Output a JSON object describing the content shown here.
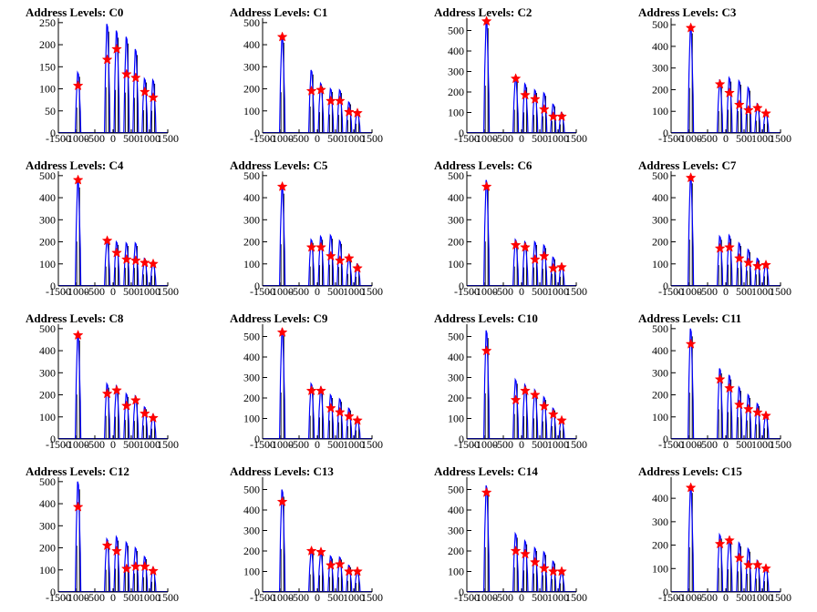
{
  "chart_data": [
    {
      "type": "bar",
      "title": "Address Levels: C0",
      "xlim": [
        -1500,
        1500
      ],
      "ylim": [
        0,
        260
      ],
      "yticks": [
        0,
        50,
        100,
        150,
        200,
        250
      ],
      "peaks": [
        {
          "x": -960,
          "y": 137
        },
        {
          "x": -160,
          "y": 247
        },
        {
          "x": 100,
          "y": 232
        },
        {
          "x": 370,
          "y": 218
        },
        {
          "x": 620,
          "y": 190
        },
        {
          "x": 870,
          "y": 123
        },
        {
          "x": 1100,
          "y": 120
        }
      ],
      "markers": [
        {
          "x": -960,
          "y": 107
        },
        {
          "x": -160,
          "y": 166
        },
        {
          "x": 100,
          "y": 190
        },
        {
          "x": 370,
          "y": 133
        },
        {
          "x": 620,
          "y": 125
        },
        {
          "x": 870,
          "y": 93
        },
        {
          "x": 1100,
          "y": 80
        }
      ]
    },
    {
      "type": "bar",
      "title": "Address Levels: C1",
      "xlim": [
        -1500,
        1500
      ],
      "ylim": [
        0,
        520
      ],
      "yticks": [
        0,
        100,
        200,
        300,
        400,
        500
      ],
      "peaks": [
        {
          "x": -960,
          "y": 440
        },
        {
          "x": -160,
          "y": 285
        },
        {
          "x": 100,
          "y": 225
        },
        {
          "x": 370,
          "y": 200
        },
        {
          "x": 620,
          "y": 195
        },
        {
          "x": 870,
          "y": 140
        },
        {
          "x": 1100,
          "y": 100
        }
      ],
      "markers": [
        {
          "x": -960,
          "y": 435
        },
        {
          "x": -160,
          "y": 190
        },
        {
          "x": 100,
          "y": 195
        },
        {
          "x": 370,
          "y": 145
        },
        {
          "x": 620,
          "y": 145
        },
        {
          "x": 870,
          "y": 95
        },
        {
          "x": 1100,
          "y": 90
        }
      ]
    },
    {
      "type": "bar",
      "title": "Address Levels: C2",
      "xlim": [
        -1500,
        1500
      ],
      "ylim": [
        0,
        560
      ],
      "yticks": [
        0,
        100,
        200,
        300,
        400,
        500
      ],
      "peaks": [
        {
          "x": -960,
          "y": 550
        },
        {
          "x": -160,
          "y": 270
        },
        {
          "x": 100,
          "y": 240
        },
        {
          "x": 370,
          "y": 210
        },
        {
          "x": 620,
          "y": 195
        },
        {
          "x": 870,
          "y": 140
        },
        {
          "x": 1100,
          "y": 100
        }
      ],
      "markers": [
        {
          "x": -960,
          "y": 545
        },
        {
          "x": -160,
          "y": 265
        },
        {
          "x": 100,
          "y": 185
        },
        {
          "x": 370,
          "y": 165
        },
        {
          "x": 620,
          "y": 115
        },
        {
          "x": 870,
          "y": 80
        },
        {
          "x": 1100,
          "y": 80
        }
      ]
    },
    {
      "type": "bar",
      "title": "Address Levels: C3",
      "xlim": [
        -1500,
        1500
      ],
      "ylim": [
        0,
        530
      ],
      "yticks": [
        0,
        100,
        200,
        300,
        400,
        500
      ],
      "peaks": [
        {
          "x": -960,
          "y": 495
        },
        {
          "x": -160,
          "y": 240
        },
        {
          "x": 100,
          "y": 255
        },
        {
          "x": 370,
          "y": 240
        },
        {
          "x": 620,
          "y": 210
        },
        {
          "x": 870,
          "y": 135
        },
        {
          "x": 1100,
          "y": 100
        }
      ],
      "markers": [
        {
          "x": -960,
          "y": 485
        },
        {
          "x": -160,
          "y": 225
        },
        {
          "x": 100,
          "y": 185
        },
        {
          "x": 370,
          "y": 130
        },
        {
          "x": 620,
          "y": 105
        },
        {
          "x": 870,
          "y": 115
        },
        {
          "x": 1100,
          "y": 90
        }
      ]
    },
    {
      "type": "bar",
      "title": "Address Levels: C4",
      "xlim": [
        -1500,
        1500
      ],
      "ylim": [
        0,
        520
      ],
      "yticks": [
        0,
        100,
        200,
        300,
        400,
        500
      ],
      "peaks": [
        {
          "x": -960,
          "y": 480
        },
        {
          "x": -160,
          "y": 210
        },
        {
          "x": 100,
          "y": 200
        },
        {
          "x": 370,
          "y": 195
        },
        {
          "x": 620,
          "y": 195
        },
        {
          "x": 870,
          "y": 125
        },
        {
          "x": 1100,
          "y": 110
        }
      ],
      "markers": [
        {
          "x": -960,
          "y": 480
        },
        {
          "x": -160,
          "y": 205
        },
        {
          "x": 100,
          "y": 150
        },
        {
          "x": 370,
          "y": 120
        },
        {
          "x": 620,
          "y": 115
        },
        {
          "x": 870,
          "y": 105
        },
        {
          "x": 1100,
          "y": 100
        }
      ]
    },
    {
      "type": "bar",
      "title": "Address Levels: C5",
      "xlim": [
        -1500,
        1500
      ],
      "ylim": [
        0,
        520
      ],
      "yticks": [
        0,
        100,
        200,
        300,
        400,
        500
      ],
      "peaks": [
        {
          "x": -960,
          "y": 450
        },
        {
          "x": -160,
          "y": 210
        },
        {
          "x": 100,
          "y": 225
        },
        {
          "x": 370,
          "y": 230
        },
        {
          "x": 620,
          "y": 205
        },
        {
          "x": 870,
          "y": 130
        },
        {
          "x": 1100,
          "y": 100
        }
      ],
      "markers": [
        {
          "x": -960,
          "y": 450
        },
        {
          "x": -160,
          "y": 175
        },
        {
          "x": 100,
          "y": 175
        },
        {
          "x": 370,
          "y": 135
        },
        {
          "x": 620,
          "y": 115
        },
        {
          "x": 870,
          "y": 125
        },
        {
          "x": 1100,
          "y": 80
        }
      ]
    },
    {
      "type": "bar",
      "title": "Address Levels: C6",
      "xlim": [
        -1500,
        1500
      ],
      "ylim": [
        0,
        520
      ],
      "yticks": [
        0,
        100,
        200,
        300,
        400,
        500
      ],
      "peaks": [
        {
          "x": -960,
          "y": 480
        },
        {
          "x": -160,
          "y": 210
        },
        {
          "x": 100,
          "y": 200
        },
        {
          "x": 370,
          "y": 200
        },
        {
          "x": 620,
          "y": 185
        },
        {
          "x": 870,
          "y": 130
        },
        {
          "x": 1100,
          "y": 100
        }
      ],
      "markers": [
        {
          "x": -960,
          "y": 450
        },
        {
          "x": -160,
          "y": 185
        },
        {
          "x": 100,
          "y": 175
        },
        {
          "x": 370,
          "y": 120
        },
        {
          "x": 620,
          "y": 135
        },
        {
          "x": 870,
          "y": 80
        },
        {
          "x": 1100,
          "y": 85
        }
      ]
    },
    {
      "type": "bar",
      "title": "Address Levels: C7",
      "xlim": [
        -1500,
        1500
      ],
      "ylim": [
        0,
        520
      ],
      "yticks": [
        0,
        100,
        200,
        300,
        400,
        500
      ],
      "peaks": [
        {
          "x": -960,
          "y": 500
        },
        {
          "x": -160,
          "y": 225
        },
        {
          "x": 100,
          "y": 230
        },
        {
          "x": 370,
          "y": 195
        },
        {
          "x": 620,
          "y": 165
        },
        {
          "x": 870,
          "y": 125
        },
        {
          "x": 1100,
          "y": 105
        }
      ],
      "markers": [
        {
          "x": -960,
          "y": 490
        },
        {
          "x": -160,
          "y": 170
        },
        {
          "x": 100,
          "y": 175
        },
        {
          "x": 370,
          "y": 125
        },
        {
          "x": 620,
          "y": 105
        },
        {
          "x": 870,
          "y": 90
        },
        {
          "x": 1100,
          "y": 95
        }
      ]
    },
    {
      "type": "bar",
      "title": "Address Levels: C8",
      "xlim": [
        -1500,
        1500
      ],
      "ylim": [
        0,
        520
      ],
      "yticks": [
        0,
        100,
        200,
        300,
        400,
        500
      ],
      "peaks": [
        {
          "x": -960,
          "y": 480
        },
        {
          "x": -160,
          "y": 250
        },
        {
          "x": 100,
          "y": 240
        },
        {
          "x": 370,
          "y": 205
        },
        {
          "x": 620,
          "y": 195
        },
        {
          "x": 870,
          "y": 145
        },
        {
          "x": 1100,
          "y": 110
        }
      ],
      "markers": [
        {
          "x": -960,
          "y": 470
        },
        {
          "x": -160,
          "y": 205
        },
        {
          "x": 100,
          "y": 220
        },
        {
          "x": 370,
          "y": 150
        },
        {
          "x": 620,
          "y": 175
        },
        {
          "x": 870,
          "y": 115
        },
        {
          "x": 1100,
          "y": 95
        }
      ]
    },
    {
      "type": "bar",
      "title": "Address Levels: C9",
      "xlim": [
        -1500,
        1500
      ],
      "ylim": [
        0,
        560
      ],
      "yticks": [
        0,
        100,
        200,
        300,
        400,
        500
      ],
      "peaks": [
        {
          "x": -960,
          "y": 540
        },
        {
          "x": -160,
          "y": 270
        },
        {
          "x": 100,
          "y": 250
        },
        {
          "x": 370,
          "y": 215
        },
        {
          "x": 620,
          "y": 195
        },
        {
          "x": 870,
          "y": 150
        },
        {
          "x": 1100,
          "y": 100
        }
      ],
      "markers": [
        {
          "x": -960,
          "y": 520
        },
        {
          "x": -160,
          "y": 235
        },
        {
          "x": 100,
          "y": 235
        },
        {
          "x": 370,
          "y": 150
        },
        {
          "x": 620,
          "y": 130
        },
        {
          "x": 870,
          "y": 110
        },
        {
          "x": 1100,
          "y": 90
        }
      ]
    },
    {
      "type": "bar",
      "title": "Address Levels: C10",
      "xlim": [
        -1500,
        1500
      ],
      "ylim": [
        0,
        560
      ],
      "yticks": [
        0,
        100,
        200,
        300,
        400,
        500
      ],
      "peaks": [
        {
          "x": -960,
          "y": 530
        },
        {
          "x": -160,
          "y": 290
        },
        {
          "x": 100,
          "y": 265
        },
        {
          "x": 370,
          "y": 240
        },
        {
          "x": 620,
          "y": 205
        },
        {
          "x": 870,
          "y": 150
        },
        {
          "x": 1100,
          "y": 100
        }
      ],
      "markers": [
        {
          "x": -960,
          "y": 430
        },
        {
          "x": -160,
          "y": 190
        },
        {
          "x": 100,
          "y": 235
        },
        {
          "x": 370,
          "y": 215
        },
        {
          "x": 620,
          "y": 160
        },
        {
          "x": 870,
          "y": 120
        },
        {
          "x": 1100,
          "y": 90
        }
      ]
    },
    {
      "type": "bar",
      "title": "Address Levels: C11",
      "xlim": [
        -1500,
        1500
      ],
      "ylim": [
        0,
        520
      ],
      "yticks": [
        0,
        100,
        200,
        300,
        400,
        500
      ],
      "peaks": [
        {
          "x": -960,
          "y": 500
        },
        {
          "x": -160,
          "y": 320
        },
        {
          "x": 100,
          "y": 290
        },
        {
          "x": 370,
          "y": 235
        },
        {
          "x": 620,
          "y": 200
        },
        {
          "x": 870,
          "y": 160
        },
        {
          "x": 1100,
          "y": 115
        }
      ],
      "markers": [
        {
          "x": -960,
          "y": 430
        },
        {
          "x": -160,
          "y": 270
        },
        {
          "x": 100,
          "y": 230
        },
        {
          "x": 370,
          "y": 155
        },
        {
          "x": 620,
          "y": 135
        },
        {
          "x": 870,
          "y": 120
        },
        {
          "x": 1100,
          "y": 105
        }
      ]
    },
    {
      "type": "bar",
      "title": "Address Levels: C12",
      "xlim": [
        -1500,
        1500
      ],
      "ylim": [
        0,
        520
      ],
      "yticks": [
        0,
        100,
        200,
        300,
        400,
        500
      ],
      "peaks": [
        {
          "x": -960,
          "y": 500
        },
        {
          "x": -160,
          "y": 240
        },
        {
          "x": 100,
          "y": 250
        },
        {
          "x": 370,
          "y": 225
        },
        {
          "x": 620,
          "y": 200
        },
        {
          "x": 870,
          "y": 160
        },
        {
          "x": 1100,
          "y": 110
        }
      ],
      "markers": [
        {
          "x": -960,
          "y": 385
        },
        {
          "x": -160,
          "y": 210
        },
        {
          "x": 100,
          "y": 185
        },
        {
          "x": 370,
          "y": 105
        },
        {
          "x": 620,
          "y": 115
        },
        {
          "x": 870,
          "y": 115
        },
        {
          "x": 1100,
          "y": 95
        }
      ]
    },
    {
      "type": "bar",
      "title": "Address Levels: C13",
      "xlim": [
        -1500,
        1500
      ],
      "ylim": [
        0,
        560
      ],
      "yticks": [
        0,
        100,
        200,
        300,
        400,
        500
      ],
      "peaks": [
        {
          "x": -960,
          "y": 500
        },
        {
          "x": -160,
          "y": 205
        },
        {
          "x": 100,
          "y": 195
        },
        {
          "x": 370,
          "y": 175
        },
        {
          "x": 620,
          "y": 170
        },
        {
          "x": 870,
          "y": 130
        },
        {
          "x": 1100,
          "y": 105
        }
      ],
      "markers": [
        {
          "x": -960,
          "y": 440
        },
        {
          "x": -160,
          "y": 200
        },
        {
          "x": 100,
          "y": 195
        },
        {
          "x": 370,
          "y": 130
        },
        {
          "x": 620,
          "y": 135
        },
        {
          "x": 870,
          "y": 100
        },
        {
          "x": 1100,
          "y": 100
        }
      ]
    },
    {
      "type": "bar",
      "title": "Address Levels: C14",
      "xlim": [
        -1500,
        1500
      ],
      "ylim": [
        0,
        560
      ],
      "yticks": [
        0,
        100,
        200,
        300,
        400,
        500
      ],
      "peaks": [
        {
          "x": -960,
          "y": 520
        },
        {
          "x": -160,
          "y": 285
        },
        {
          "x": 100,
          "y": 250
        },
        {
          "x": 370,
          "y": 215
        },
        {
          "x": 620,
          "y": 195
        },
        {
          "x": 870,
          "y": 150
        },
        {
          "x": 1100,
          "y": 100
        }
      ],
      "markers": [
        {
          "x": -960,
          "y": 485
        },
        {
          "x": -160,
          "y": 200
        },
        {
          "x": 100,
          "y": 185
        },
        {
          "x": 370,
          "y": 145
        },
        {
          "x": 620,
          "y": 115
        },
        {
          "x": 870,
          "y": 100
        },
        {
          "x": 1100,
          "y": 100
        }
      ]
    },
    {
      "type": "bar",
      "title": "Address Levels: C15",
      "xlim": [
        -1500,
        1500
      ],
      "ylim": [
        0,
        490
      ],
      "yticks": [
        0,
        100,
        200,
        300,
        400
      ],
      "peaks": [
        {
          "x": -960,
          "y": 455
        },
        {
          "x": -160,
          "y": 245
        },
        {
          "x": 100,
          "y": 230
        },
        {
          "x": 370,
          "y": 210
        },
        {
          "x": 620,
          "y": 185
        },
        {
          "x": 870,
          "y": 135
        },
        {
          "x": 1100,
          "y": 110
        }
      ],
      "markers": [
        {
          "x": -960,
          "y": 445
        },
        {
          "x": -160,
          "y": 205
        },
        {
          "x": 100,
          "y": 220
        },
        {
          "x": 370,
          "y": 145
        },
        {
          "x": 620,
          "y": 115
        },
        {
          "x": 870,
          "y": 115
        },
        {
          "x": 1100,
          "y": 100
        }
      ]
    }
  ],
  "xticks": [
    -1500,
    -1000,
    -500,
    0,
    500,
    1000,
    1500
  ],
  "colors": {
    "histogram": "#0000ff",
    "spike": "#000000",
    "marker": "#ff0000",
    "axis": "#000000"
  }
}
